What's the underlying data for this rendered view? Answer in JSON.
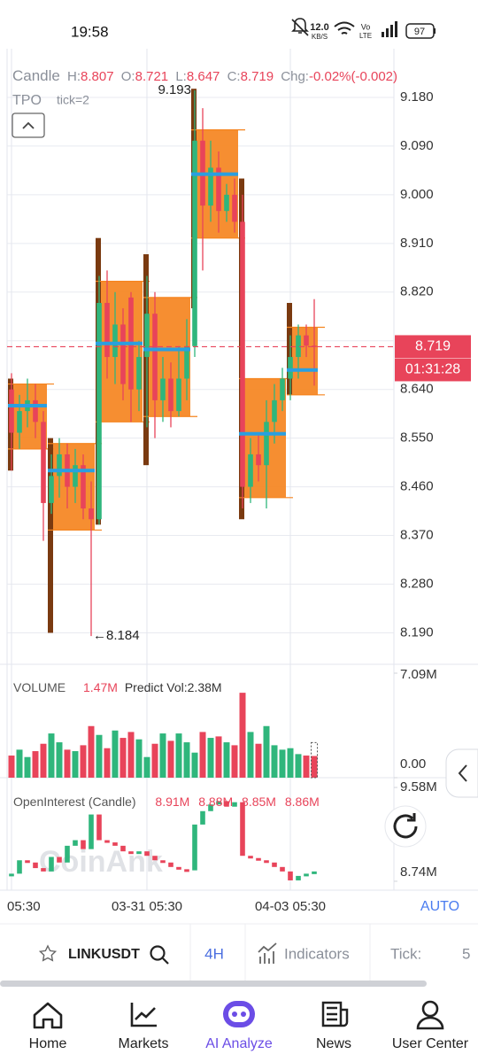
{
  "status_bar": {
    "time": "19:58",
    "net_speed": "12.0",
    "net_unit": "KB/S",
    "volte_top": "Vo",
    "volte_bottom": "LTE",
    "battery": "97"
  },
  "header": {
    "chart_type": "Candle",
    "stats": [
      {
        "label": "H:",
        "value": "8.807"
      },
      {
        "label": "O:",
        "value": "8.721"
      },
      {
        "label": "L:",
        "value": "8.647"
      },
      {
        "label": "C:",
        "value": "8.719"
      },
      {
        "label": "Chg:",
        "value": "-0.02%(-0.002)"
      }
    ],
    "indicator": "TPO",
    "indicator_param": "tick=2"
  },
  "chart_data": [
    {
      "type": "candlestick",
      "categories": [
        "05:30",
        null,
        null,
        null,
        null,
        null,
        null,
        null,
        null,
        null,
        null,
        null,
        null,
        null,
        null,
        null,
        null,
        "03-31 05:30",
        null,
        null,
        null,
        null,
        null,
        null,
        null,
        null,
        null,
        null,
        null,
        null,
        null,
        null,
        null,
        null,
        null,
        "04-03 05:30",
        null,
        null,
        null
      ],
      "open": [
        8.64,
        8.56,
        8.6,
        8.62,
        8.58,
        8.43,
        8.48,
        8.52,
        8.46,
        8.5,
        8.42,
        8.4,
        8.8,
        8.7,
        8.76,
        8.81,
        8.64,
        8.7,
        8.78,
        8.62,
        8.66,
        8.6,
        8.66,
        8.72,
        9.1,
        8.98,
        9.05,
        8.97,
        9.0,
        8.95,
        8.46,
        8.52,
        8.5,
        8.58,
        8.62,
        8.66,
        8.7,
        8.74,
        8.721
      ],
      "high": [
        8.67,
        8.63,
        8.66,
        8.65,
        8.6,
        8.52,
        8.55,
        8.54,
        8.53,
        8.52,
        8.47,
        8.85,
        8.86,
        8.82,
        8.79,
        8.82,
        8.73,
        8.85,
        8.82,
        8.7,
        8.69,
        8.72,
        8.77,
        9.193,
        9.16,
        9.1,
        9.08,
        9.02,
        9.03,
        9.0,
        8.55,
        8.56,
        8.62,
        8.65,
        8.68,
        8.74,
        8.76,
        8.76,
        8.807
      ],
      "low": [
        8.49,
        8.53,
        8.57,
        8.55,
        8.36,
        8.41,
        8.44,
        8.42,
        8.43,
        8.4,
        8.184,
        8.39,
        8.66,
        8.65,
        8.62,
        8.58,
        8.6,
        8.57,
        8.55,
        8.58,
        8.57,
        8.59,
        8.62,
        8.7,
        8.86,
        8.95,
        8.93,
        8.95,
        8.93,
        8.42,
        8.43,
        8.47,
        8.42,
        8.54,
        8.6,
        8.62,
        8.66,
        8.7,
        8.647
      ],
      "close": [
        8.56,
        8.6,
        8.62,
        8.58,
        8.43,
        8.48,
        8.52,
        8.46,
        8.5,
        8.42,
        8.4,
        8.8,
        8.7,
        8.76,
        8.65,
        8.64,
        8.7,
        8.78,
        8.62,
        8.66,
        8.6,
        8.66,
        8.72,
        9.1,
        8.98,
        9.05,
        8.97,
        9.0,
        8.95,
        8.46,
        8.52,
        8.5,
        8.58,
        8.62,
        8.66,
        8.7,
        8.74,
        8.721,
        8.719
      ],
      "up_color": "#2fb67c",
      "down_color": "#e8445a",
      "ylim": [
        8.14,
        9.27
      ],
      "yticks": [
        {
          "value": 9.18,
          "label": "9.180"
        },
        {
          "value": 9.09,
          "label": "9.090"
        },
        {
          "value": 9.0,
          "label": "9.000"
        },
        {
          "value": 8.91,
          "label": "8.910"
        },
        {
          "value": 8.82,
          "label": "8.820"
        },
        {
          "value": 8.73,
          "label": "8.730"
        },
        {
          "value": 8.64,
          "label": "8.640"
        },
        {
          "value": 8.55,
          "label": "8.550"
        },
        {
          "value": 8.46,
          "label": "8.460"
        },
        {
          "value": 8.37,
          "label": "8.370"
        },
        {
          "value": 8.28,
          "label": "8.280"
        },
        {
          "value": 8.19,
          "label": "8.190"
        }
      ],
      "grid": true,
      "last_price": 8.719,
      "countdown": "01:31:28",
      "annotations": [
        {
          "value": 9.193,
          "label": "9.193"
        },
        {
          "value": 8.184,
          "label": "←8.184"
        }
      ],
      "tpo": [
        {
          "from": 0,
          "to": 4,
          "low": 8.49,
          "high": 8.66,
          "va_low": 8.53,
          "va_high": 8.65,
          "poc": 8.61
        },
        {
          "from": 5,
          "to": 10,
          "low": 8.19,
          "high": 8.55,
          "va_low": 8.38,
          "va_high": 8.54,
          "poc": 8.49
        },
        {
          "from": 11,
          "to": 16,
          "low": 8.39,
          "high": 8.92,
          "va_low": 8.58,
          "va_high": 8.84,
          "poc": 8.725
        },
        {
          "from": 17,
          "to": 22,
          "low": 8.5,
          "high": 8.89,
          "va_low": 8.59,
          "va_high": 8.81,
          "poc": 8.714
        },
        {
          "from": 23,
          "to": 28,
          "low": 8.79,
          "high": 9.196,
          "va_low": 8.92,
          "va_high": 9.12,
          "poc": 9.038
        },
        {
          "from": 29,
          "to": 34,
          "low": 8.4,
          "high": 9.03,
          "va_low": 8.44,
          "va_high": 8.66,
          "poc": 8.558
        },
        {
          "from": 35,
          "to": 38,
          "low": 8.63,
          "high": 8.8,
          "va_low": 8.63,
          "va_high": 8.755,
          "poc": 8.676
        }
      ],
      "tpo_color": "#f5841f",
      "tpo_edge_color": "#7a3a10",
      "poc_color": "#2a9fe0"
    },
    {
      "type": "bar",
      "title": "VOLUME",
      "last_label": "1.47M",
      "predict_label": "Predict Vol:2.38M",
      "values": [
        1.5,
        1.9,
        1.4,
        1.8,
        2.3,
        3.0,
        2.4,
        1.9,
        1.8,
        2.2,
        3.5,
        2.9,
        2.0,
        3.2,
        2.7,
        3.1,
        2.6,
        1.4,
        2.3,
        3.0,
        2.5,
        3.0,
        2.4,
        1.7,
        3.1,
        2.7,
        2.8,
        2.4,
        2.2,
        5.76,
        3.1,
        2.3,
        3.5,
        2.2,
        1.9,
        2.0,
        1.6,
        1.5,
        1.47
      ],
      "predict_value": 2.38,
      "ylim": [
        0,
        7.09
      ],
      "yticks": [
        {
          "value": 7.09,
          "label": "7.09M"
        },
        {
          "value": 0,
          "label": "0.00"
        }
      ],
      "grid": false
    },
    {
      "type": "candlestick",
      "title": "OpenInterest (Candle)",
      "legend": [
        "8.91M",
        "8.88M",
        "8.85M",
        "8.86M"
      ],
      "values": [
        8.8,
        8.92,
        8.9,
        8.85,
        8.82,
        8.95,
        8.9,
        9.05,
        9.1,
        9.02,
        9.33,
        9.1,
        9.08,
        9.05,
        9.0,
        8.98,
        9.0,
        8.96,
        8.92,
        8.9,
        8.86,
        8.84,
        8.83,
        9.24,
        9.36,
        9.42,
        9.45,
        9.4,
        9.44,
        8.96,
        8.94,
        8.92,
        8.9,
        8.86,
        8.82,
        8.74,
        8.78,
        8.8,
        8.82
      ],
      "ylim": [
        8.7,
        9.62
      ],
      "yticks": [
        {
          "value": 9.58,
          "label": "9.58M"
        },
        {
          "value": 8.74,
          "label": "8.74M"
        }
      ],
      "grid": false
    }
  ],
  "x_mode": "AUTO",
  "watermark": "CoinAnk",
  "toolbar": {
    "symbol": "LINKUSDT",
    "interval": "4H",
    "indicators": "Indicators",
    "tick_label": "Tick:",
    "tick_value": "5"
  },
  "nav": [
    {
      "label": "Home"
    },
    {
      "label": "Markets"
    },
    {
      "label": "AI Analyze"
    },
    {
      "label": "News"
    },
    {
      "label": "User Center"
    }
  ]
}
